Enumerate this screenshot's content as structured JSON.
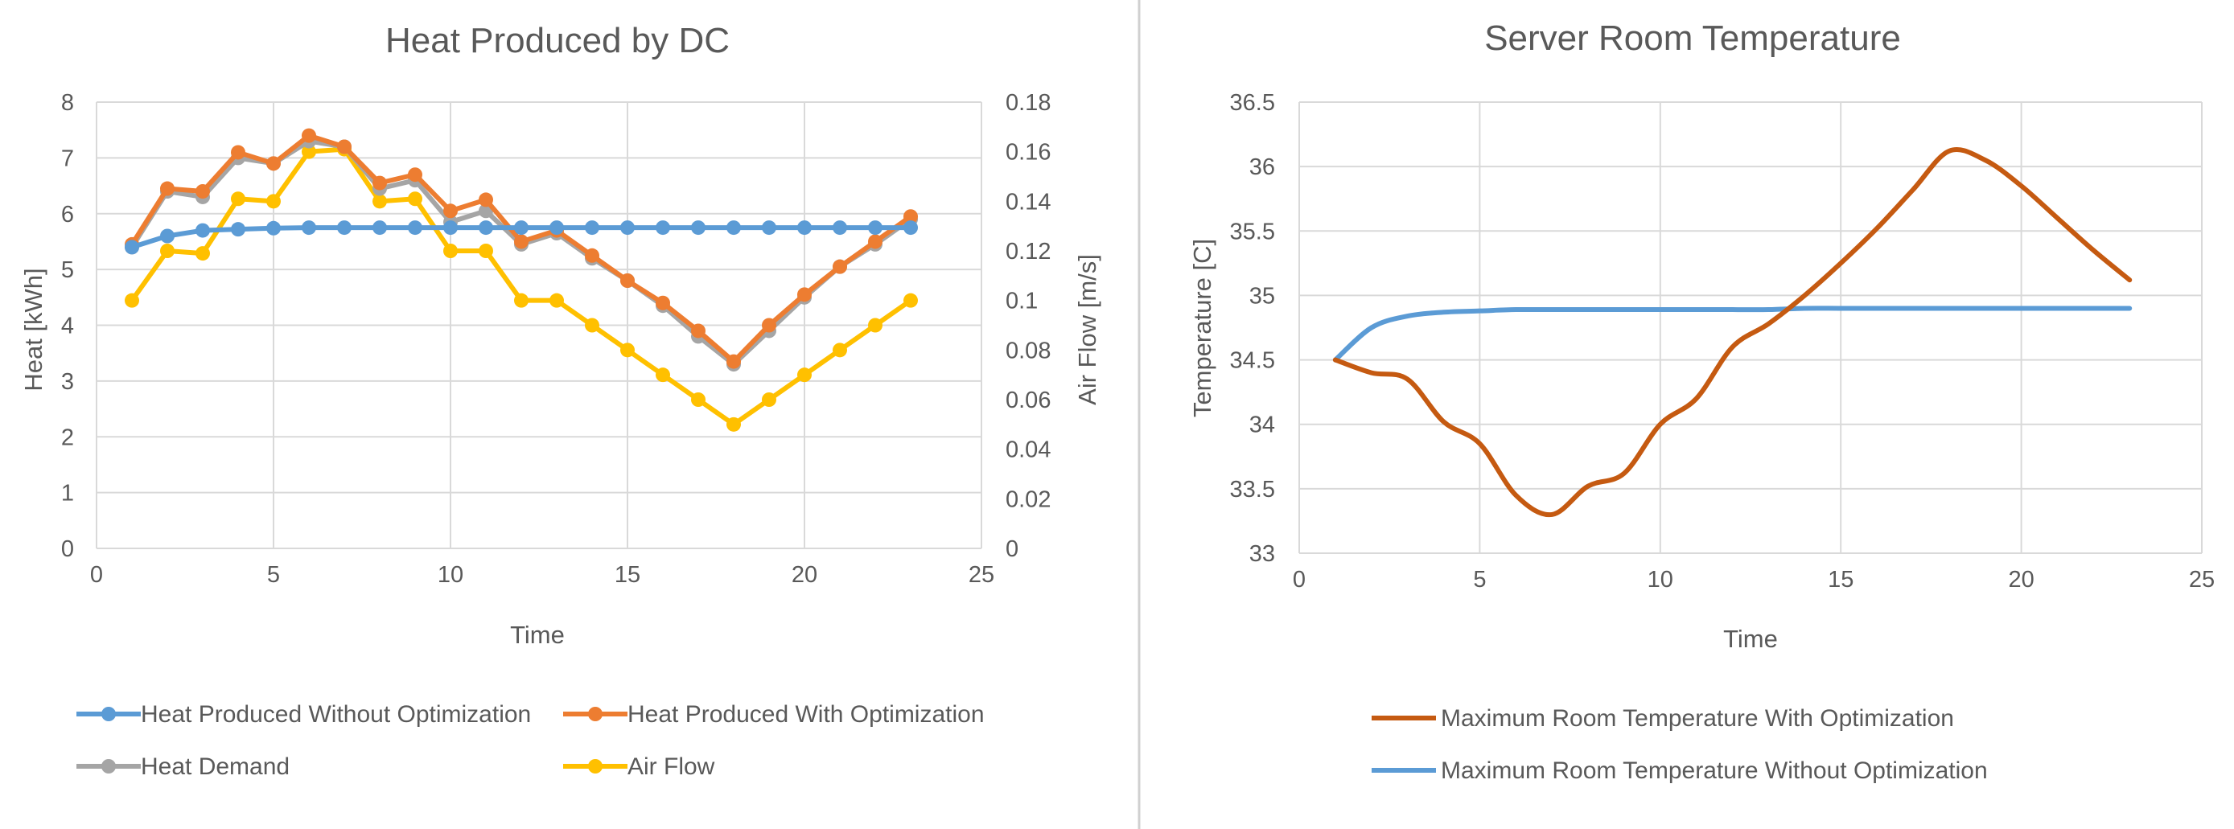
{
  "colors": {
    "blue": "#5b9bd5",
    "orange": "#ed7d31",
    "gray": "#a5a5a5",
    "yellow": "#ffc000",
    "dark_orange": "#c55a11"
  },
  "chart_data": [
    {
      "type": "line",
      "title": "Heat Produced by DC",
      "xlabel": "Time",
      "ylabel": "Heat [kWh]",
      "y2label": "Air Flow [m/s]",
      "xlim": [
        0,
        25
      ],
      "ylim": [
        0,
        8
      ],
      "y2lim": [
        0,
        0.18
      ],
      "xticks": [
        "0",
        "5",
        "10",
        "15",
        "20",
        "25"
      ],
      "yticks": [
        "0",
        "1",
        "2",
        "3",
        "4",
        "5",
        "6",
        "7",
        "8"
      ],
      "y2ticks": [
        "0",
        "0.02",
        "0.04",
        "0.06",
        "0.08",
        "0.1",
        "0.12",
        "0.14",
        "0.16",
        "0.18"
      ],
      "x": [
        1,
        2,
        3,
        4,
        5,
        6,
        7,
        8,
        9,
        10,
        11,
        12,
        13,
        14,
        15,
        16,
        17,
        18,
        19,
        20,
        21,
        22,
        23
      ],
      "legend_position": "bottom",
      "series": [
        {
          "name": "Heat Produced Without Optimization",
          "axis": "left",
          "color": "#5b9bd5",
          "values": [
            5.4,
            5.6,
            5.7,
            5.72,
            5.74,
            5.75,
            5.75,
            5.75,
            5.75,
            5.75,
            5.75,
            5.75,
            5.75,
            5.75,
            5.75,
            5.75,
            5.75,
            5.75,
            5.75,
            5.75,
            5.75,
            5.75,
            5.75
          ]
        },
        {
          "name": "Heat Produced With Optimization",
          "axis": "left",
          "color": "#ed7d31",
          "values": [
            5.45,
            6.45,
            6.4,
            7.1,
            6.9,
            7.4,
            7.2,
            6.55,
            6.7,
            6.05,
            6.25,
            5.5,
            5.7,
            5.25,
            4.8,
            4.4,
            3.9,
            3.35,
            4.0,
            4.55,
            5.05,
            5.5,
            5.95
          ]
        },
        {
          "name": "Heat Demand",
          "axis": "left",
          "color": "#a5a5a5",
          "values": [
            5.4,
            6.4,
            6.3,
            7.0,
            6.9,
            7.3,
            7.2,
            6.45,
            6.6,
            5.85,
            6.05,
            5.45,
            5.65,
            5.2,
            4.8,
            4.35,
            3.8,
            3.3,
            3.9,
            4.5,
            5.05,
            5.45,
            5.9
          ]
        },
        {
          "name": "Air Flow",
          "axis": "right",
          "color": "#ffc000",
          "values": [
            0.1,
            0.12,
            0.119,
            0.141,
            0.14,
            0.16,
            0.161,
            0.14,
            0.141,
            0.12,
            0.12,
            0.1,
            0.1,
            0.09,
            0.08,
            0.07,
            0.06,
            0.05,
            0.06,
            0.07,
            0.08,
            0.09,
            0.1
          ]
        }
      ]
    },
    {
      "type": "line",
      "title": "Server Room Temperature",
      "xlabel": "Time",
      "ylabel": "Temperature [C]",
      "xlim": [
        0,
        25
      ],
      "ylim": [
        33,
        36.5
      ],
      "xticks": [
        "0",
        "5",
        "10",
        "15",
        "20",
        "25"
      ],
      "yticks": [
        "33",
        "33.5",
        "34",
        "34.5",
        "35",
        "35.5",
        "36",
        "36.5"
      ],
      "legend_position": "bottom",
      "series": [
        {
          "name": "Maximum Room Temperature With Optimization",
          "color": "#c55a11",
          "x": [
            1,
            2,
            3,
            4,
            5,
            6,
            7,
            8,
            9,
            10,
            11,
            12,
            13,
            14,
            15,
            16,
            17,
            18,
            19,
            20,
            21,
            22,
            23
          ],
          "values": [
            34.5,
            34.4,
            34.35,
            34.02,
            33.85,
            33.45,
            33.3,
            33.52,
            33.62,
            34.0,
            34.2,
            34.6,
            34.78,
            35.0,
            35.25,
            35.52,
            35.82,
            36.12,
            36.05,
            35.85,
            35.6,
            35.35,
            35.12
          ]
        },
        {
          "name": "Maximum Room Temperature Without Optimization",
          "color": "#5b9bd5",
          "x": [
            1,
            2,
            3,
            4,
            5,
            6,
            7,
            8,
            9,
            10,
            11,
            12,
            13,
            14,
            15,
            16,
            17,
            18,
            19,
            20,
            21,
            22,
            23
          ],
          "values": [
            34.5,
            34.75,
            34.84,
            34.87,
            34.88,
            34.89,
            34.89,
            34.89,
            34.89,
            34.89,
            34.89,
            34.89,
            34.89,
            34.9,
            34.9,
            34.9,
            34.9,
            34.9,
            34.9,
            34.9,
            34.9,
            34.9,
            34.9
          ]
        }
      ]
    }
  ]
}
